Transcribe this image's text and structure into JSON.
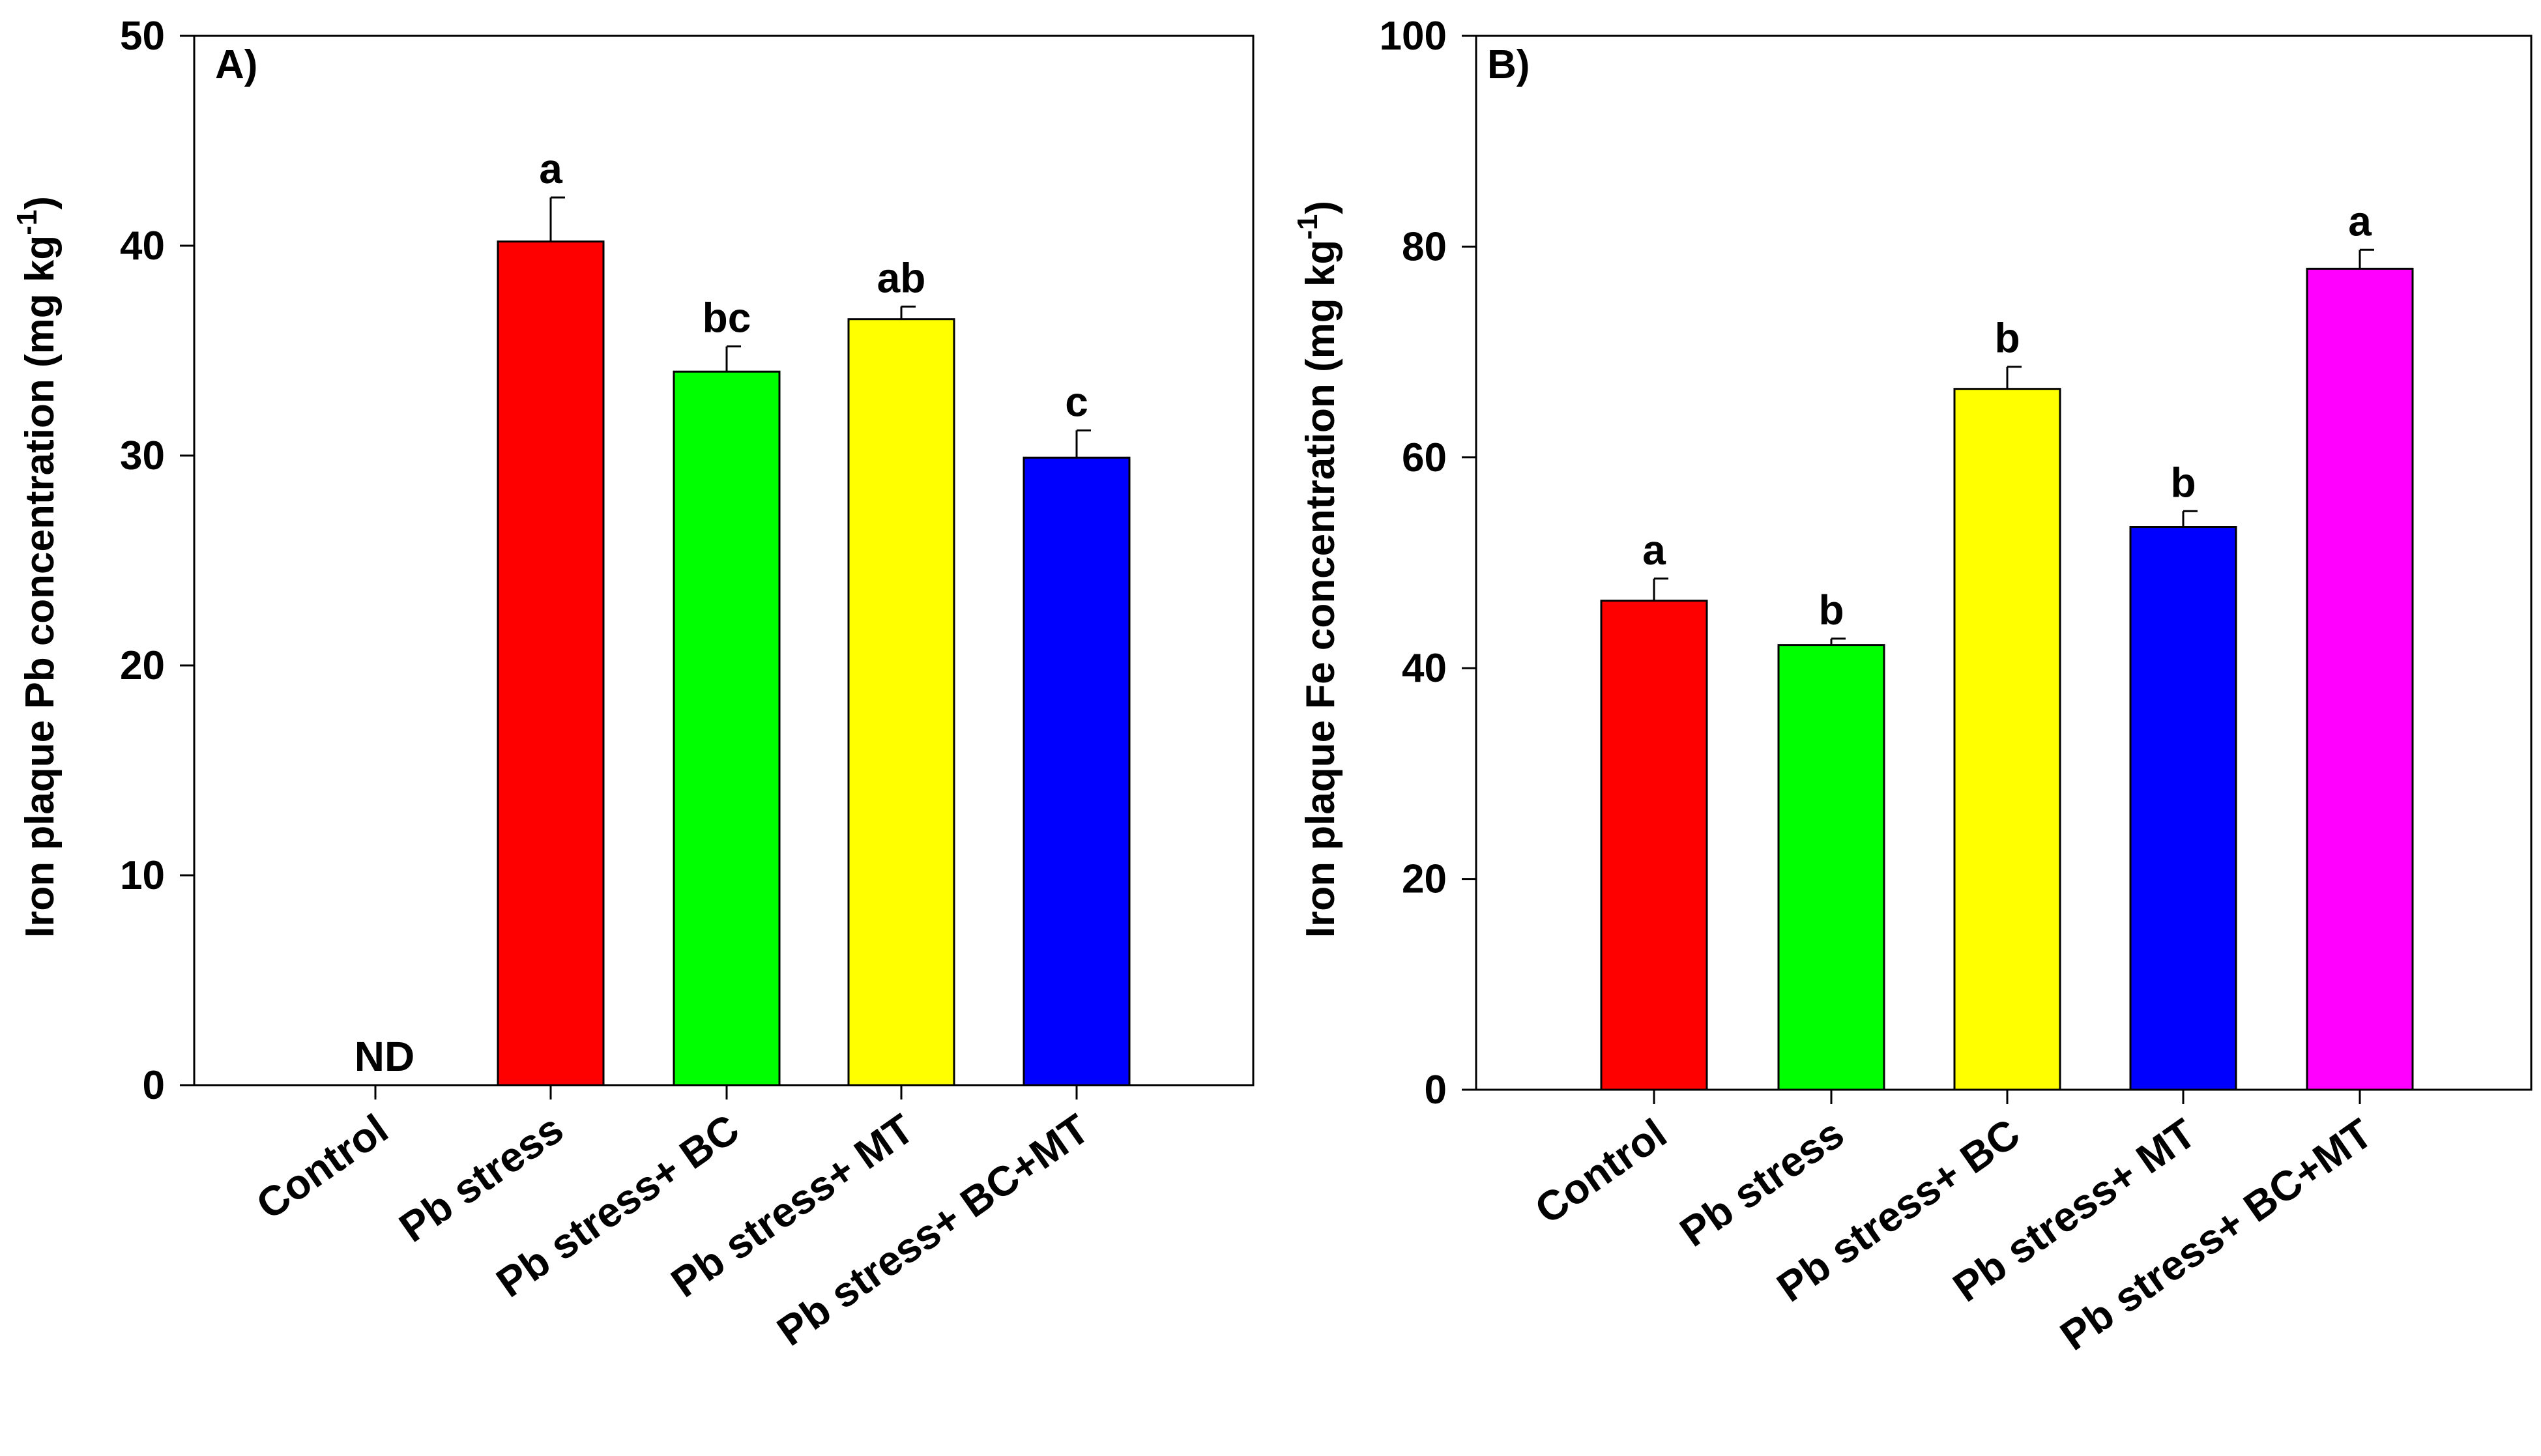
{
  "chart_data": [
    {
      "type": "bar",
      "panel_label": "A)",
      "ylabel": "Iron plaque Pb concentration (mg kg",
      "ylabel_sup": "-1",
      "ylabel_close": ")",
      "ylim": [
        0,
        50
      ],
      "yticks": [
        0,
        10,
        20,
        30,
        40,
        50
      ],
      "categories": [
        "Control",
        "Pb stress",
        "Pb stress+ BC",
        "Pb stress+ MT",
        "Pb stress+ BC+MT"
      ],
      "values": [
        0,
        40.2,
        34.0,
        36.5,
        29.9
      ],
      "errors": [
        0,
        2.1,
        1.2,
        0.6,
        1.3
      ],
      "significance": [
        "",
        "a",
        "bc",
        "ab",
        "c"
      ],
      "missing_label": "ND",
      "colors": [
        "#ff0000",
        "#ff0000",
        "#00ff00",
        "#ffff00",
        "#0000ff"
      ]
    },
    {
      "type": "bar",
      "panel_label": "B)",
      "ylabel": "Iron plaque Fe concentration (mg kg",
      "ylabel_sup": "-1",
      "ylabel_close": ")",
      "ylim": [
        0,
        100
      ],
      "yticks": [
        0,
        20,
        40,
        60,
        80,
        100
      ],
      "categories": [
        "Control",
        "Pb stress",
        "Pb stress+ BC",
        "Pb stress+ MT",
        "Pb stress+ BC+MT"
      ],
      "values": [
        46.4,
        42.2,
        66.5,
        53.4,
        77.9
      ],
      "errors": [
        2.1,
        0.6,
        2.1,
        1.5,
        1.8
      ],
      "significance": [
        "a",
        "b",
        "b",
        "b",
        "a"
      ],
      "colors": [
        "#ff0000",
        "#00ff00",
        "#ffff00",
        "#0000ff",
        "#ff00ff"
      ]
    }
  ]
}
